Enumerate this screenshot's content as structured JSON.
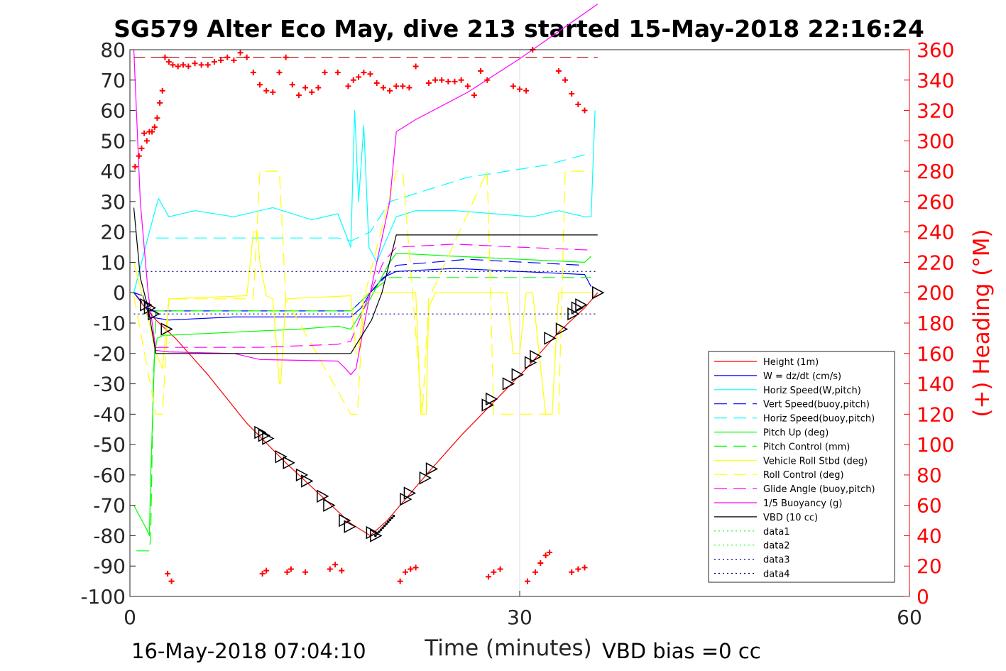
{
  "chart_data": {
    "type": "line",
    "title": "SG579 Alter Eco May, dive 213 started 15-May-2018 22:16:24",
    "xlabel": "Time (minutes)",
    "ylabel_right": "(+) Heading (°M)",
    "footer_left": "16-May-2018 07:04:10",
    "footer_right": "VBD bias =0 cc",
    "xlim": [
      0,
      60
    ],
    "ylim_left": [
      -100,
      80
    ],
    "ylim_right": [
      0,
      360
    ],
    "xticks": [
      "0",
      "30",
      "60"
    ],
    "yticks_left": [
      "80",
      "70",
      "60",
      "50",
      "40",
      "30",
      "20",
      "10",
      "0",
      "-10",
      "-20",
      "-30",
      "-40",
      "-50",
      "-60",
      "-70",
      "-80",
      "-90",
      "-100"
    ],
    "yticks_right": [
      "360",
      "340",
      "320",
      "300",
      "280",
      "260",
      "240",
      "220",
      "200",
      "180",
      "160",
      "140",
      "120",
      "100",
      "80",
      "60",
      "40",
      "20",
      "0"
    ],
    "grid": "x at 30 only",
    "legend_position": "lower-right",
    "series": [
      {
        "name": "Height (1m)",
        "color": "#ff0000",
        "style": "solid",
        "x": [
          0.3,
          1.0,
          2.0,
          3.5,
          6.0,
          9.0,
          12.0,
          15.0,
          17.0,
          18.5,
          19.8,
          21.0,
          23.0,
          25.5,
          28.0,
          30.5,
          33.0,
          35.0,
          36.0
        ],
        "y": [
          0,
          -4,
          -9,
          -15,
          -27,
          -43,
          -56,
          -68,
          -76,
          -80,
          -75,
          -69,
          -59,
          -47,
          -36,
          -25,
          -13,
          -5,
          0
        ]
      },
      {
        "name": "W = dz/dt (cm/s)",
        "color": "#0000ff",
        "style": "solid",
        "x": [
          0.3,
          1.0,
          1.5,
          3,
          8,
          14,
          17,
          17.8,
          18.5,
          19.5,
          20.5,
          25,
          30,
          35,
          35.5
        ],
        "y": [
          0,
          -1,
          -8,
          -9,
          -8,
          -8,
          -8,
          -5,
          0,
          5,
          7,
          8,
          7,
          6,
          2
        ]
      },
      {
        "name": "Horiz Speed(W,pitch)",
        "color": "#00ffff",
        "style": "solid",
        "x": [
          0.3,
          1.5,
          2.0,
          2.2,
          3,
          5,
          8,
          11,
          14,
          16,
          17,
          17.3,
          17.6,
          18,
          18.4,
          19,
          20,
          20.5,
          22,
          25,
          28,
          31,
          33,
          35,
          35.5,
          35.8
        ],
        "y": [
          0,
          20,
          28,
          31,
          25,
          27,
          25,
          28,
          24,
          26,
          15,
          60,
          30,
          55,
          15,
          10,
          20,
          25,
          27,
          27,
          26,
          25,
          27,
          25,
          25,
          60
        ]
      },
      {
        "name": "Vert Speed(buoy,pitch)",
        "color": "#0000ff",
        "style": "dashed",
        "x": [
          0.3,
          1.5,
          3,
          10,
          17,
          18.5,
          20.5,
          26,
          35
        ],
        "y": [
          0,
          -6,
          -6,
          -6,
          -6,
          0,
          9,
          11,
          9
        ]
      },
      {
        "name": "Horiz Speed(buoy,pitch)",
        "color": "#00ffff",
        "style": "dashed",
        "x": [
          2,
          10,
          16,
          17,
          18.5,
          20,
          26,
          32,
          35.5
        ],
        "y": [
          18,
          18,
          18,
          17,
          20,
          30,
          38,
          42,
          46
        ]
      },
      {
        "name": "Pitch Up (deg)",
        "color": "#00ff00",
        "style": "solid",
        "x": [
          0.3,
          1.3,
          1.5,
          1.6,
          1.9,
          2.1,
          2.6,
          3,
          8,
          13,
          16,
          17,
          18.5,
          20,
          20.5,
          25,
          30,
          35,
          35.5
        ],
        "y": [
          -70,
          -78,
          -80,
          -60,
          -20,
          -15,
          -14,
          -14,
          -13,
          -12,
          -11,
          -12,
          -2,
          10,
          13,
          12,
          11,
          10,
          12
        ]
      },
      {
        "name": "Pitch Control (mm)",
        "color": "#00ff00",
        "style": "dashed",
        "x": [
          0.5,
          1.5,
          1.6,
          1.8,
          2.0,
          2.5,
          10,
          17,
          18.5,
          20,
          35.5
        ],
        "y": [
          -85,
          -85,
          -80,
          -30,
          -6,
          -6,
          -6,
          -6,
          0,
          5,
          5
        ]
      },
      {
        "name": "Vehicle Roll Stbd (deg)",
        "color": "#ffff00",
        "style": "solid",
        "x": [
          0.3,
          1.5,
          2.0,
          2.5,
          3,
          9,
          9.5,
          9.8,
          10,
          10.5,
          11,
          11.5,
          11.6,
          12,
          17,
          17.4,
          17.6,
          18,
          18.4,
          19,
          21,
          22,
          22.4,
          22.8,
          23,
          23.5,
          29,
          29.5,
          30,
          30.5,
          31,
          32,
          32.5,
          33,
          35.5
        ],
        "y": [
          10,
          -10,
          -20,
          -25,
          -2,
          -1,
          20,
          20,
          10,
          -1,
          -2,
          -30,
          -30,
          -2,
          -1,
          -20,
          -20,
          -1,
          0,
          0,
          0,
          0,
          -40,
          -40,
          -5,
          0,
          0,
          -20,
          -20,
          0,
          0,
          -40,
          -40,
          0,
          0
        ]
      },
      {
        "name": "Roll Control (deg)",
        "color": "#ffff00",
        "style": "dashed",
        "x": [
          0.3,
          2.0,
          2.5,
          3,
          9.5,
          10,
          11.5,
          12,
          17,
          17.5,
          18,
          20.5,
          21,
          22.5,
          23,
          27.5,
          28,
          33,
          33.5,
          35.5
        ],
        "y": [
          -1,
          -40,
          -40,
          -2,
          -2,
          40,
          40,
          -2,
          -40,
          -40,
          -2,
          40,
          40,
          -40,
          -2,
          40,
          -40,
          -40,
          40,
          40
        ]
      },
      {
        "name": "Glide Angle (buoy,pitch)",
        "color": "#ff00ff",
        "style": "dashed",
        "x": [
          2,
          5,
          10,
          16,
          17,
          18.5,
          19.5,
          20.5,
          25,
          30,
          35.5
        ],
        "y": [
          -18,
          -18,
          -18,
          -17,
          -16,
          0,
          10,
          15,
          16,
          15,
          14
        ]
      },
      {
        "name": "1/5 Buoyancy (g)",
        "color": "#ff00ff",
        "style": "solid",
        "x": [
          0.3,
          0.8,
          1.4,
          2.0,
          3,
          8,
          10,
          16,
          16.6,
          17,
          17.4,
          18.5,
          19.5,
          20,
          20.5,
          22,
          26,
          30,
          33,
          36
        ],
        "y": [
          80,
          30,
          0,
          -19,
          -19.5,
          -20,
          -22,
          -22.5,
          -25,
          -27,
          -25,
          0,
          20,
          30,
          53,
          57,
          66,
          77,
          86,
          95
        ]
      },
      {
        "name": "VBD (10 cc)",
        "color": "#000000",
        "style": "solid",
        "x": [
          0.3,
          0.8,
          1.4,
          1.8,
          2.0,
          17.0,
          18.6,
          19.4,
          20.5,
          36.0
        ],
        "y": [
          28,
          5,
          -5,
          -15,
          -20,
          -20,
          -9,
          0,
          19,
          19
        ]
      },
      {
        "name": "data1",
        "color": "#00ff00",
        "style": "dotted",
        "x": [],
        "y": []
      },
      {
        "name": "data2",
        "color": "#00ff00",
        "style": "dotted",
        "x": [],
        "y": []
      },
      {
        "name": "data3",
        "color": "#00008b",
        "style": "dotted",
        "x": [
          0.3,
          36
        ],
        "y": [
          7,
          7
        ]
      },
      {
        "name": "data4",
        "color": "#00008b",
        "style": "dotted",
        "x": [
          0.3,
          36
        ],
        "y": [
          -7,
          -7
        ]
      }
    ],
    "ref_line": {
      "color": "#aa0000",
      "style": "dashed",
      "axis": "right",
      "y": 355,
      "x": [
        0.3,
        36
      ]
    },
    "heading_points": {
      "color": "#ff0000",
      "marker": "+",
      "axis": "right",
      "x": [
        0.4,
        0.7,
        0.9,
        1.1,
        1.3,
        1.5,
        1.7,
        1.9,
        2.1,
        2.3,
        2.5,
        2.7,
        3.0,
        3.3,
        3.7,
        4.1,
        4.5,
        5.0,
        5.5,
        6.0,
        6.5,
        7.0,
        7.5,
        8.0,
        8.5,
        9.0,
        9.5,
        10.0,
        10.5,
        11.0,
        11.5,
        12.0,
        12.5,
        13.0,
        13.5,
        14.0,
        14.5,
        15.0,
        16.0,
        16.8,
        17.2,
        17.6,
        18.0,
        18.5,
        19.0,
        19.5,
        20.0,
        20.5,
        21.0,
        21.5,
        22.0,
        23.0,
        23.5,
        24.0,
        24.5,
        25.0,
        25.5,
        26.0,
        26.5,
        27.0,
        27.5,
        29.5,
        30.0,
        30.5,
        31.0,
        33.0,
        33.5,
        34.0,
        34.5,
        35.0,
        2.9,
        3.2,
        10.2,
        10.5,
        12.1,
        12.4,
        13.5,
        15.4,
        15.8,
        16.3,
        20.8,
        21.2,
        21.6,
        22.0,
        27.6,
        28.0,
        28.5,
        30.6,
        31.2,
        31.6,
        32.0,
        32.3,
        34.0,
        34.5,
        35.0
      ],
      "y": [
        283,
        290,
        295,
        305,
        300,
        306,
        306,
        309,
        315,
        325,
        333,
        355,
        352,
        350,
        349,
        350,
        349,
        351,
        350,
        350,
        352,
        353,
        355,
        353,
        358,
        355,
        345,
        337,
        333,
        332,
        345,
        355,
        337,
        330,
        335,
        332,
        335,
        345,
        345,
        336,
        340,
        342,
        345,
        344,
        338,
        335,
        333,
        336,
        336,
        335,
        349,
        338,
        340,
        340,
        339,
        339,
        340,
        336,
        330,
        346,
        340,
        336,
        334,
        333,
        360,
        346,
        340,
        331,
        324,
        320,
        15,
        10,
        15,
        17,
        16,
        18,
        16,
        18,
        21,
        17,
        10,
        16,
        18,
        19,
        13,
        16,
        18,
        10,
        16,
        22,
        27,
        29,
        16,
        18,
        19
      ]
    },
    "tri_markers": {
      "x": [
        1.2,
        1.5,
        1.8,
        2.8,
        10.0,
        10.3,
        10.6,
        11.6,
        12.2,
        13.2,
        13.6,
        14.8,
        15.3,
        16.5,
        16.9,
        18.6,
        18.9,
        21.2,
        21.5,
        22.7,
        23.2,
        27.5,
        27.8,
        29.1,
        29.8,
        30.8,
        31.2,
        32.3,
        33.2,
        34.1,
        34.4,
        34.7,
        36.0
      ],
      "y": [
        -4,
        -5,
        -7,
        -12,
        -46,
        -47,
        -48,
        -54,
        -56,
        -60,
        -62,
        -67,
        -70,
        -75,
        -77,
        -79,
        -80,
        -68,
        -66,
        -61,
        -58,
        -37,
        -35,
        -30,
        -27,
        -23,
        -21,
        -15,
        -12,
        -7,
        -5,
        -4,
        0
      ]
    }
  },
  "legend_entries": [
    "Height (1m)",
    "W = dz/dt (cm/s)",
    "Horiz Speed(W,pitch)",
    "Vert Speed(buoy,pitch)",
    "Horiz Speed(buoy,pitch)",
    "Pitch Up (deg)",
    "Pitch Control (mm)",
    "Vehicle Roll Stbd (deg)",
    "Roll Control (deg)",
    "Glide Angle (buoy,pitch)",
    "1/5 Buoyancy (g)",
    "VBD (10 cc)",
    "data1",
    "data2",
    "data3",
    "data4"
  ]
}
